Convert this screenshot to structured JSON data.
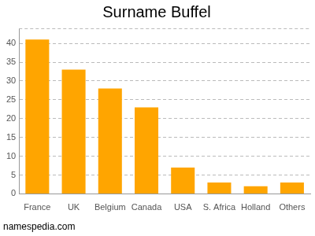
{
  "chart_data": {
    "type": "bar",
    "title": "Surname Buffel",
    "categories": [
      "France",
      "UK",
      "Belgium",
      "Canada",
      "USA",
      "S. Africa",
      "Holland",
      "Others"
    ],
    "values": [
      41,
      33,
      28,
      23,
      7,
      3,
      2,
      3
    ],
    "color": "#ffa500",
    "ylim": [
      0,
      44
    ],
    "yticks": [
      0,
      5,
      10,
      15,
      20,
      25,
      30,
      35,
      40
    ],
    "grid": true,
    "annotations": [
      "namespedia.com"
    ]
  }
}
